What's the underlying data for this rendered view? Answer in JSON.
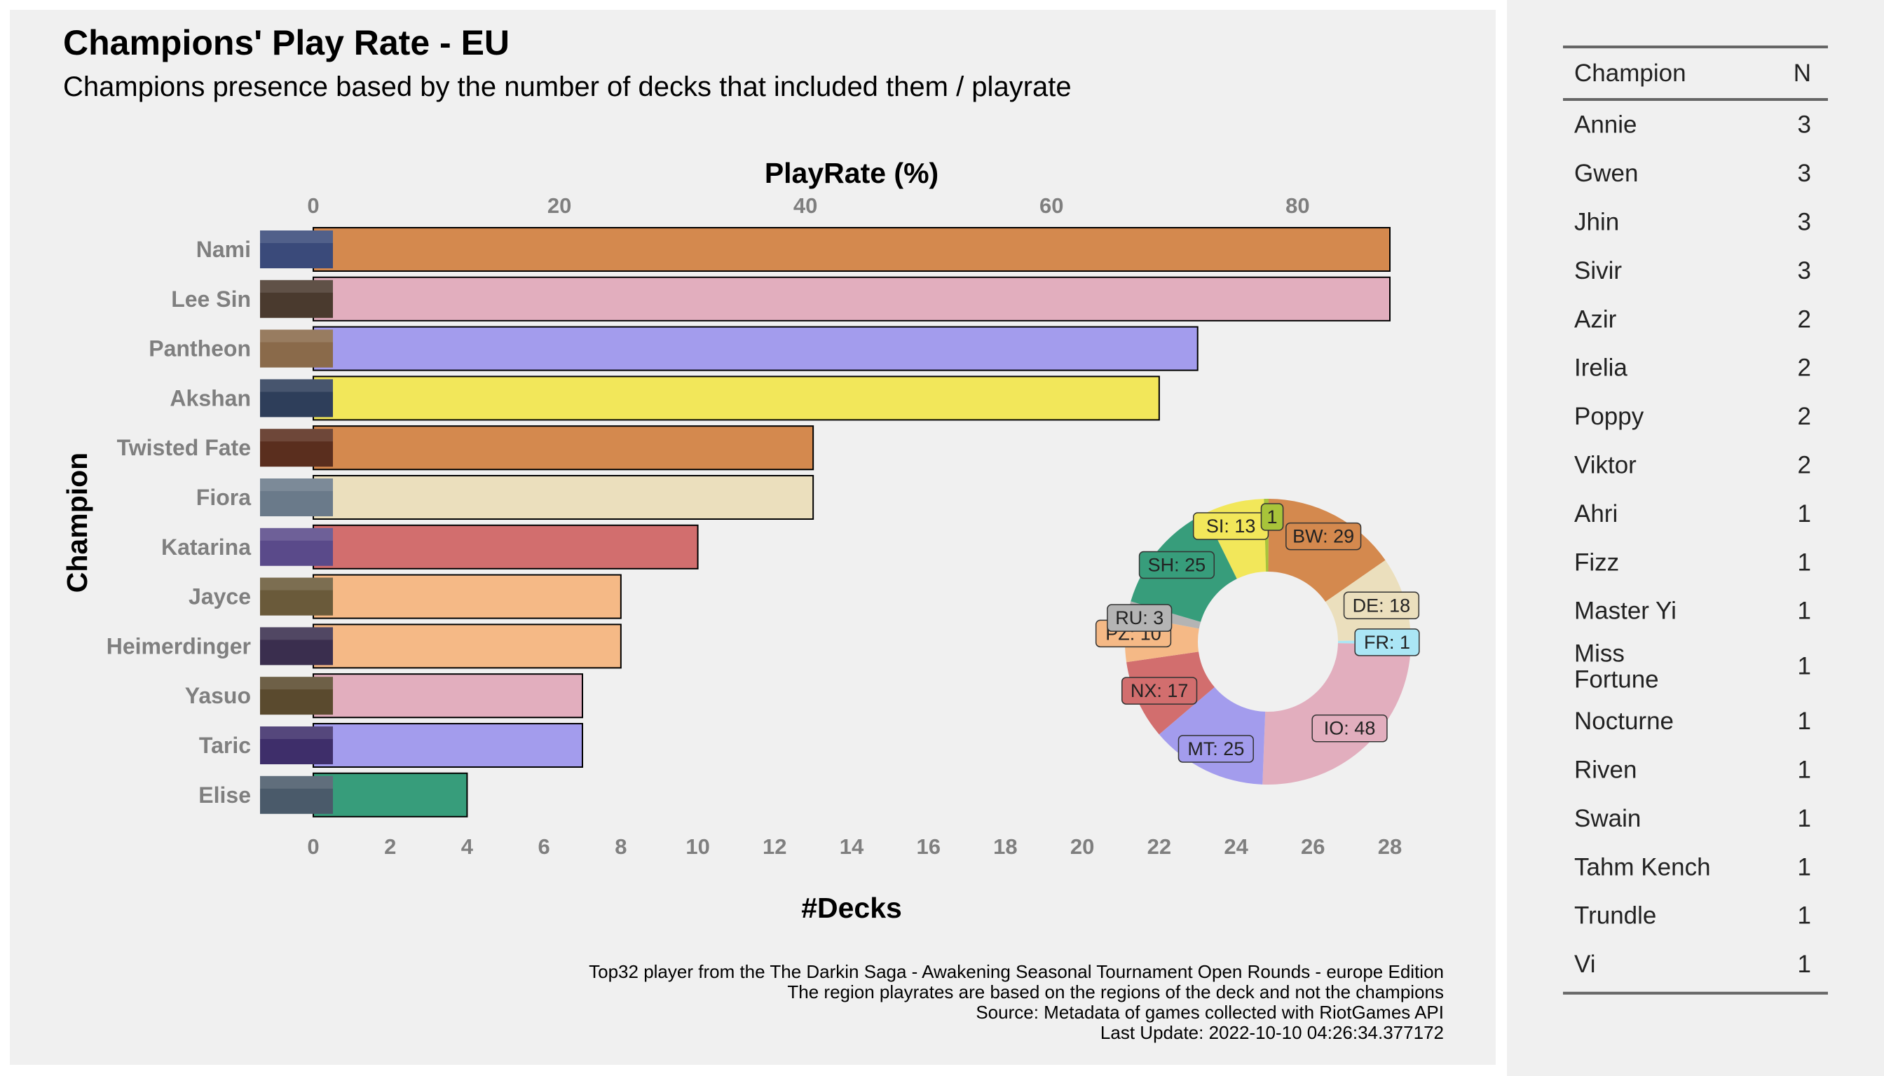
{
  "chart_data": [
    {
      "type": "bar",
      "title": "Champions' Play Rate - EU",
      "subtitle": "Champions presence based by the number of decks that included them / playrate",
      "xlabel": "#Decks",
      "xlabel_top": "PlayRate (%)",
      "ylabel": "Champion",
      "orientation": "horizontal",
      "xlim": [
        0,
        28
      ],
      "x_ticks": [
        "0",
        "2",
        "4",
        "6",
        "8",
        "10",
        "12",
        "14",
        "16",
        "18",
        "20",
        "22",
        "24",
        "26",
        "28"
      ],
      "top_ticks": [
        "0",
        "20",
        "40",
        "60",
        "80"
      ],
      "top_tick_values": [
        0,
        20,
        40,
        60,
        80
      ],
      "total_decks": 32,
      "categories": [
        "Nami",
        "Lee Sin",
        "Pantheon",
        "Akshan",
        "Twisted Fate",
        "Fiora",
        "Katarina",
        "Jayce",
        "Heimerdinger",
        "Yasuo",
        "Taric",
        "Elise"
      ],
      "values": [
        28,
        28,
        23,
        22,
        13,
        13,
        10,
        8,
        8,
        7,
        7,
        4
      ],
      "colors": [
        "#d4894e",
        "#e2aebe",
        "#a39ced",
        "#f2e75a",
        "#d4894e",
        "#ebdfbd",
        "#d26e6e",
        "#f5b986",
        "#f5b986",
        "#e2aebe",
        "#a39ced",
        "#379d7b"
      ],
      "grid": false,
      "legend": "none"
    },
    {
      "type": "pie",
      "variant": "donut",
      "labels": [
        "BW: 29",
        "DE: 18",
        "FR: 1",
        "IO: 48",
        "MT: 25",
        "NX: 17",
        "PZ: 10",
        "RU: 3",
        "SH: 25",
        "SI: 13",
        "1"
      ],
      "values": [
        29,
        18,
        1,
        48,
        25,
        17,
        10,
        3,
        25,
        13,
        1
      ],
      "colors": [
        "#d4894e",
        "#ebdfbd",
        "#abe6f5",
        "#e2aebe",
        "#a39ced",
        "#d26e6e",
        "#f5b986",
        "#b4b4b4",
        "#379d7b",
        "#f2e75a",
        "#a8c43a"
      ]
    }
  ],
  "caption": [
    "Top32 player from the The Darkin Saga - Awakening Seasonal Tournament Open Rounds - europe Edition",
    "The region playrates are based on the regions of the deck and not the champions",
    "Source: Metadata of games collected with RiotGames API",
    "Last Update: 2022-10-10 04:26:34.377172"
  ],
  "table": {
    "headers": [
      "Champion",
      "N"
    ],
    "rows": [
      [
        "Annie",
        "3"
      ],
      [
        "Gwen",
        "3"
      ],
      [
        "Jhin",
        "3"
      ],
      [
        "Sivir",
        "3"
      ],
      [
        "Azir",
        "2"
      ],
      [
        "Irelia",
        "2"
      ],
      [
        "Poppy",
        "2"
      ],
      [
        "Viktor",
        "2"
      ],
      [
        "Ahri",
        "1"
      ],
      [
        "Fizz",
        "1"
      ],
      [
        "Master Yi",
        "1"
      ],
      [
        "Miss Fortune",
        "1"
      ],
      [
        "Nocturne",
        "1"
      ],
      [
        "Riven",
        "1"
      ],
      [
        "Swain",
        "1"
      ],
      [
        "Tahm Kench",
        "1"
      ],
      [
        "Trundle",
        "1"
      ],
      [
        "Vi",
        "1"
      ]
    ]
  },
  "thumbnail_colors": [
    "#3a4a7a",
    "#4a3a2e",
    "#8a6a4a",
    "#2e3e5a",
    "#5a2e1e",
    "#6a7a8a",
    "#5a4a8a",
    "#6a5a3a",
    "#3a2e4e",
    "#5a4a2e",
    "#3e2e6a",
    "#4a5a6a"
  ]
}
